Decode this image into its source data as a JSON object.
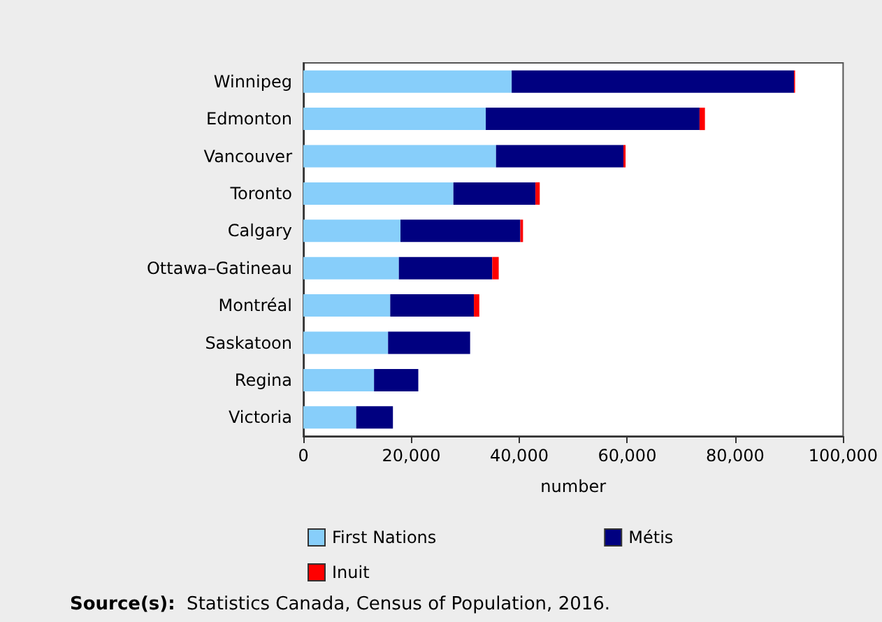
{
  "chart_data": {
    "type": "bar",
    "orientation": "horizontal",
    "stacked": true,
    "categories": [
      "Winnipeg",
      "Edmonton",
      "Vancouver",
      "Toronto",
      "Calgary",
      "Ottawa–Gatineau",
      "Montréal",
      "Saskatoon",
      "Regina",
      "Victoria"
    ],
    "series": [
      {
        "name": "First Nations",
        "color": "#87cefa",
        "values": [
          38600,
          33800,
          35700,
          27800,
          18000,
          17700,
          16100,
          15700,
          13100,
          9800
        ]
      },
      {
        "name": "Métis",
        "color": "#000080",
        "values": [
          52300,
          39600,
          23600,
          15200,
          22200,
          17300,
          15500,
          15200,
          8200,
          6800
        ]
      },
      {
        "name": "Inuit",
        "color": "#ff0000",
        "values": [
          200,
          1000,
          400,
          800,
          500,
          1200,
          1000,
          null,
          null,
          null
        ]
      }
    ],
    "xlim": [
      0,
      100000
    ],
    "xticks": [
      0,
      {
        "value": 20000,
        "label": "20,000"
      },
      {
        "value": 40000,
        "label": "40,000"
      },
      {
        "value": 60000,
        "label": "60,000"
      },
      {
        "value": 80000,
        "label": "80,000"
      },
      {
        "value": 100000,
        "label": "100,000"
      }
    ],
    "xlabel": "number",
    "legend": "bottom",
    "grid": false,
    "annotations": [
      "Source(s): Statistics Canada, Census of Population, 2016."
    ]
  }
}
